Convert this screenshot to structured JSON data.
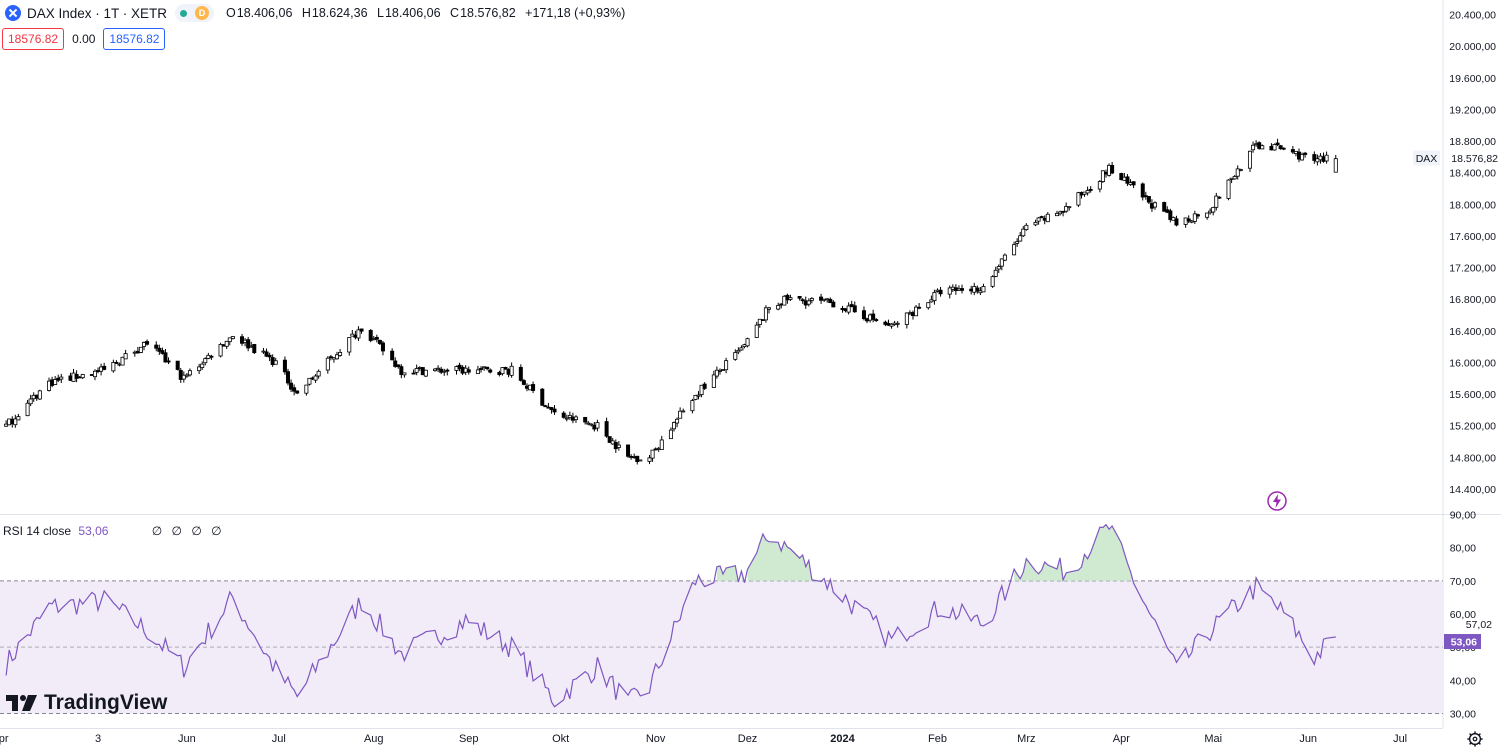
{
  "header": {
    "title": "DAX Index · 1T · XETR",
    "status_badge": "D",
    "ohlc": {
      "o_label": "O",
      "o": "18.406,06",
      "h_label": "H",
      "h": "18.624,36",
      "l_label": "L",
      "l": "18.406,06",
      "c_label": "C",
      "c": "18.576,82",
      "change": "+171,18 (+0,93%)"
    }
  },
  "order": {
    "sell_price": "18576.82",
    "spread": "0.00",
    "buy_price": "18576.82"
  },
  "rsi": {
    "legend_name": "RSI 14 close",
    "legend_value": "53,06",
    "legend_extra": "∅ ∅ ∅ ∅",
    "current_label": "53,06",
    "ma_label": "57,02",
    "upper_band": 70,
    "lower_band": 30,
    "mid_level": 50
  },
  "price_axis": {
    "ticks": [
      "20.400,00",
      "20.000,00",
      "19.600,00",
      "19.200,00",
      "18.800,00",
      "18.400,00",
      "18.000,00",
      "17.600,00",
      "17.200,00",
      "16.800,00",
      "16.400,00",
      "16.000,00",
      "15.600,00",
      "15.200,00",
      "14.800,00",
      "14.400,00"
    ],
    "tick_values": [
      20400,
      20000,
      19600,
      19200,
      18800,
      18400,
      18000,
      17600,
      17200,
      16800,
      16400,
      16000,
      15600,
      15200,
      14800,
      14400
    ],
    "symbol_tag": "DAX",
    "last_price_label": "18.576,82"
  },
  "rsi_axis": {
    "ticks": [
      "90,00",
      "80,00",
      "70,00",
      "60,00",
      "50,00",
      "40,00",
      "30,00"
    ],
    "tick_values": [
      90,
      80,
      70,
      60,
      50,
      40,
      30
    ]
  },
  "time_axis": {
    "labels": [
      "Apr",
      "3",
      "Jun",
      "Jul",
      "Aug",
      "Sep",
      "Okt",
      "Nov",
      "Dez",
      "2024",
      "Feb",
      "Mrz",
      "Apr",
      "Mai",
      "Jun",
      "Jul"
    ],
    "bold_label": "2024"
  },
  "watermark": "TradingView",
  "colors": {
    "accent": "#2962ff",
    "rsi_line": "#7e57c2",
    "rsi_band": "#ede7f6",
    "overbought_fill": "#c8e6c9",
    "candle": "#000000",
    "sell": "#f23645",
    "status_green": "#22ab94",
    "status_orange": "#ffb74d"
  },
  "icons": {
    "symbol": "exchange-x-icon",
    "bolt": "lightning-icon",
    "settings": "gear-icon"
  },
  "chart_data": [
    {
      "type": "candlestick",
      "title": "DAX Index · 1T · XETR",
      "xlabel": "",
      "ylabel": "",
      "ylim": [
        14200,
        20500
      ],
      "x_start": "2023-04-01",
      "x_end": "2024-07-15",
      "last": {
        "open": 18406.06,
        "high": 18624.36,
        "low": 18406.06,
        "close": 18576.82
      },
      "anchors": [
        [
          "2023-04-03",
          15200
        ],
        [
          "2023-04-17",
          15750
        ],
        [
          "2023-05-05",
          15900
        ],
        [
          "2023-05-19",
          16250
        ],
        [
          "2023-05-31",
          15800
        ],
        [
          "2023-06-16",
          16350
        ],
        [
          "2023-06-30",
          16000
        ],
        [
          "2023-07-07",
          15600
        ],
        [
          "2023-07-28",
          16450
        ],
        [
          "2023-08-10",
          15900
        ],
        [
          "2023-08-31",
          15900
        ],
        [
          "2023-09-15",
          15900
        ],
        [
          "2023-09-29",
          15350
        ],
        [
          "2023-10-13",
          15200
        ],
        [
          "2023-10-23",
          14800
        ],
        [
          "2023-10-30",
          14800
        ],
        [
          "2023-11-14",
          15600
        ],
        [
          "2023-11-30",
          16200
        ],
        [
          "2023-12-08",
          16700
        ],
        [
          "2023-12-14",
          16800
        ],
        [
          "2023-12-29",
          16750
        ],
        [
          "2024-01-17",
          16450
        ],
        [
          "2024-02-02",
          16900
        ],
        [
          "2024-02-16",
          16950
        ],
        [
          "2024-03-01",
          17700
        ],
        [
          "2024-03-14",
          17950
        ],
        [
          "2024-03-28",
          18450
        ],
        [
          "2024-04-19",
          17750
        ],
        [
          "2024-04-30",
          17950
        ],
        [
          "2024-05-15",
          18750
        ],
        [
          "2024-05-24",
          18700
        ],
        [
          "2024-06-03",
          18550
        ],
        [
          "2024-06-10",
          18580
        ]
      ]
    },
    {
      "type": "line",
      "name": "RSI 14 close",
      "xlabel": "",
      "ylabel": "",
      "ylim": [
        27,
        91
      ],
      "levels": [
        70,
        50,
        30
      ],
      "anchors": [
        [
          "2023-04-03",
          45
        ],
        [
          "2023-04-17",
          62
        ],
        [
          "2023-05-05",
          64
        ],
        [
          "2023-05-19",
          55
        ],
        [
          "2023-05-31",
          44
        ],
        [
          "2023-06-16",
          65
        ],
        [
          "2023-06-30",
          43
        ],
        [
          "2023-07-07",
          35
        ],
        [
          "2023-07-28",
          64
        ],
        [
          "2023-08-10",
          48
        ],
        [
          "2023-08-31",
          58
        ],
        [
          "2023-09-15",
          50
        ],
        [
          "2023-09-29",
          34
        ],
        [
          "2023-10-13",
          44
        ],
        [
          "2023-10-23",
          33
        ],
        [
          "2023-10-30",
          38
        ],
        [
          "2023-11-14",
          70
        ],
        [
          "2023-11-30",
          72
        ],
        [
          "2023-12-08",
          84
        ],
        [
          "2023-12-14",
          80
        ],
        [
          "2023-12-29",
          68
        ],
        [
          "2024-01-17",
          52
        ],
        [
          "2024-02-02",
          62
        ],
        [
          "2024-02-16",
          57
        ],
        [
          "2024-03-01",
          76
        ],
        [
          "2024-03-14",
          73
        ],
        [
          "2024-03-28",
          86
        ],
        [
          "2024-04-19",
          43
        ],
        [
          "2024-04-30",
          55
        ],
        [
          "2024-05-15",
          68
        ],
        [
          "2024-05-24",
          60
        ],
        [
          "2024-06-03",
          47
        ],
        [
          "2024-06-10",
          53.06
        ]
      ]
    }
  ]
}
